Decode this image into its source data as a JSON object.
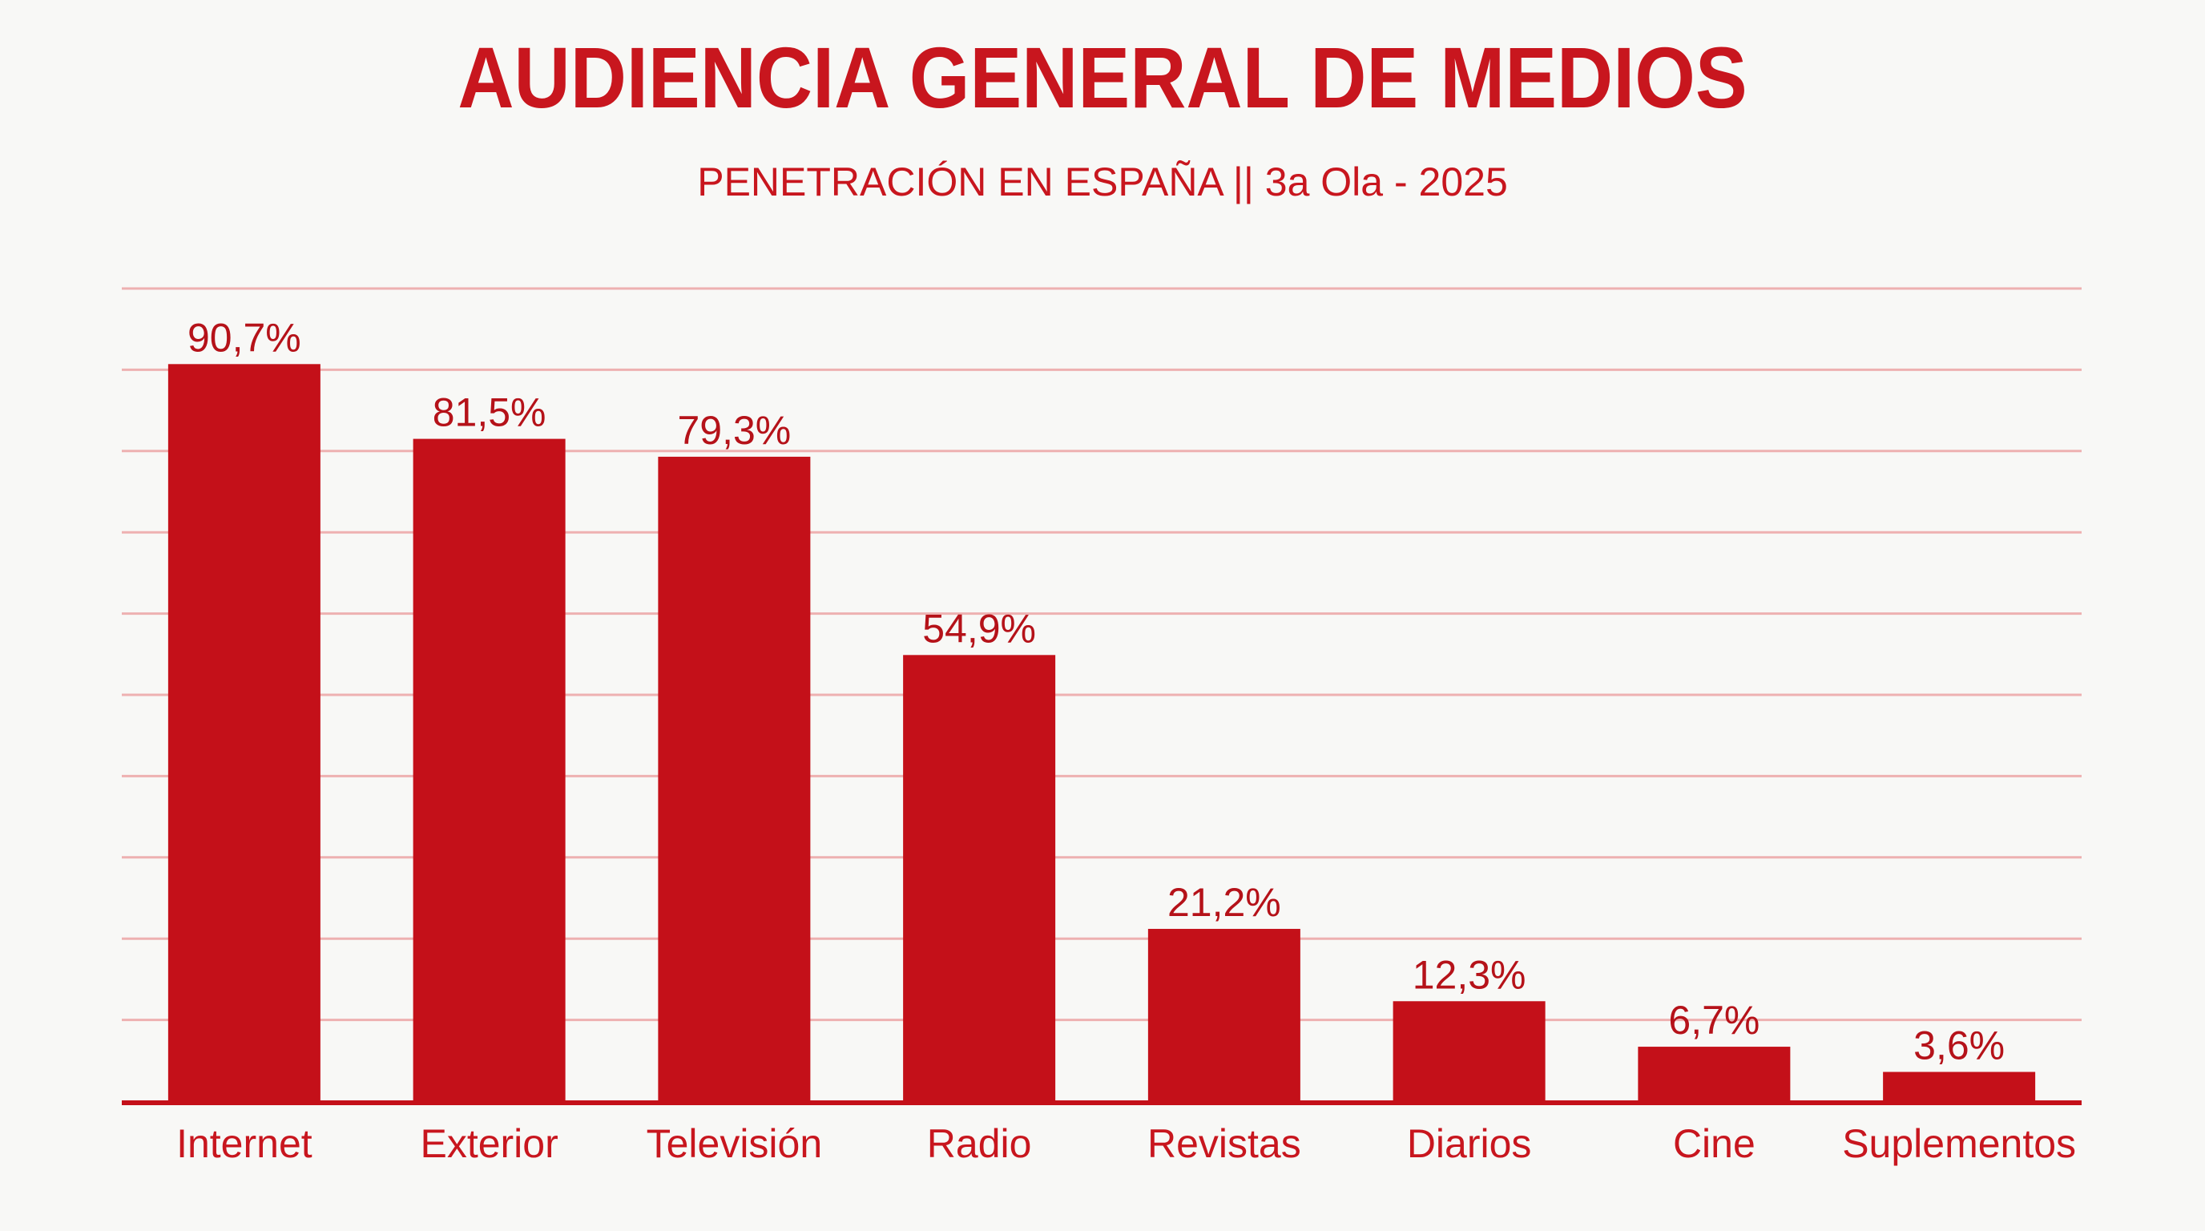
{
  "colors": {
    "bar": "#c41019",
    "text": "#c8161e",
    "grid": "#eeb1b1",
    "axis": "#c41019",
    "background": "#f8f8f6"
  },
  "chart_data": {
    "type": "bar",
    "title": "AUDIENCIA GENERAL DE MEDIOS",
    "subtitle": "PENETRACIÓN EN ESPAÑA || 3a Ola - 2025",
    "xlabel": "",
    "ylabel": "",
    "ylim": [
      0,
      100
    ],
    "grid": true,
    "categories": [
      "Internet",
      "Exterior",
      "Televisión",
      "Radio",
      "Revistas",
      "Diarios",
      "Cine",
      "Suplementos"
    ],
    "values": [
      90.7,
      81.5,
      79.3,
      54.9,
      21.2,
      12.3,
      6.7,
      3.6
    ],
    "data_labels": [
      "90,7%",
      "81,5%",
      "79,3%",
      "54,9%",
      "21,2%",
      "12,3%",
      "6,7%",
      "3,6%"
    ]
  }
}
